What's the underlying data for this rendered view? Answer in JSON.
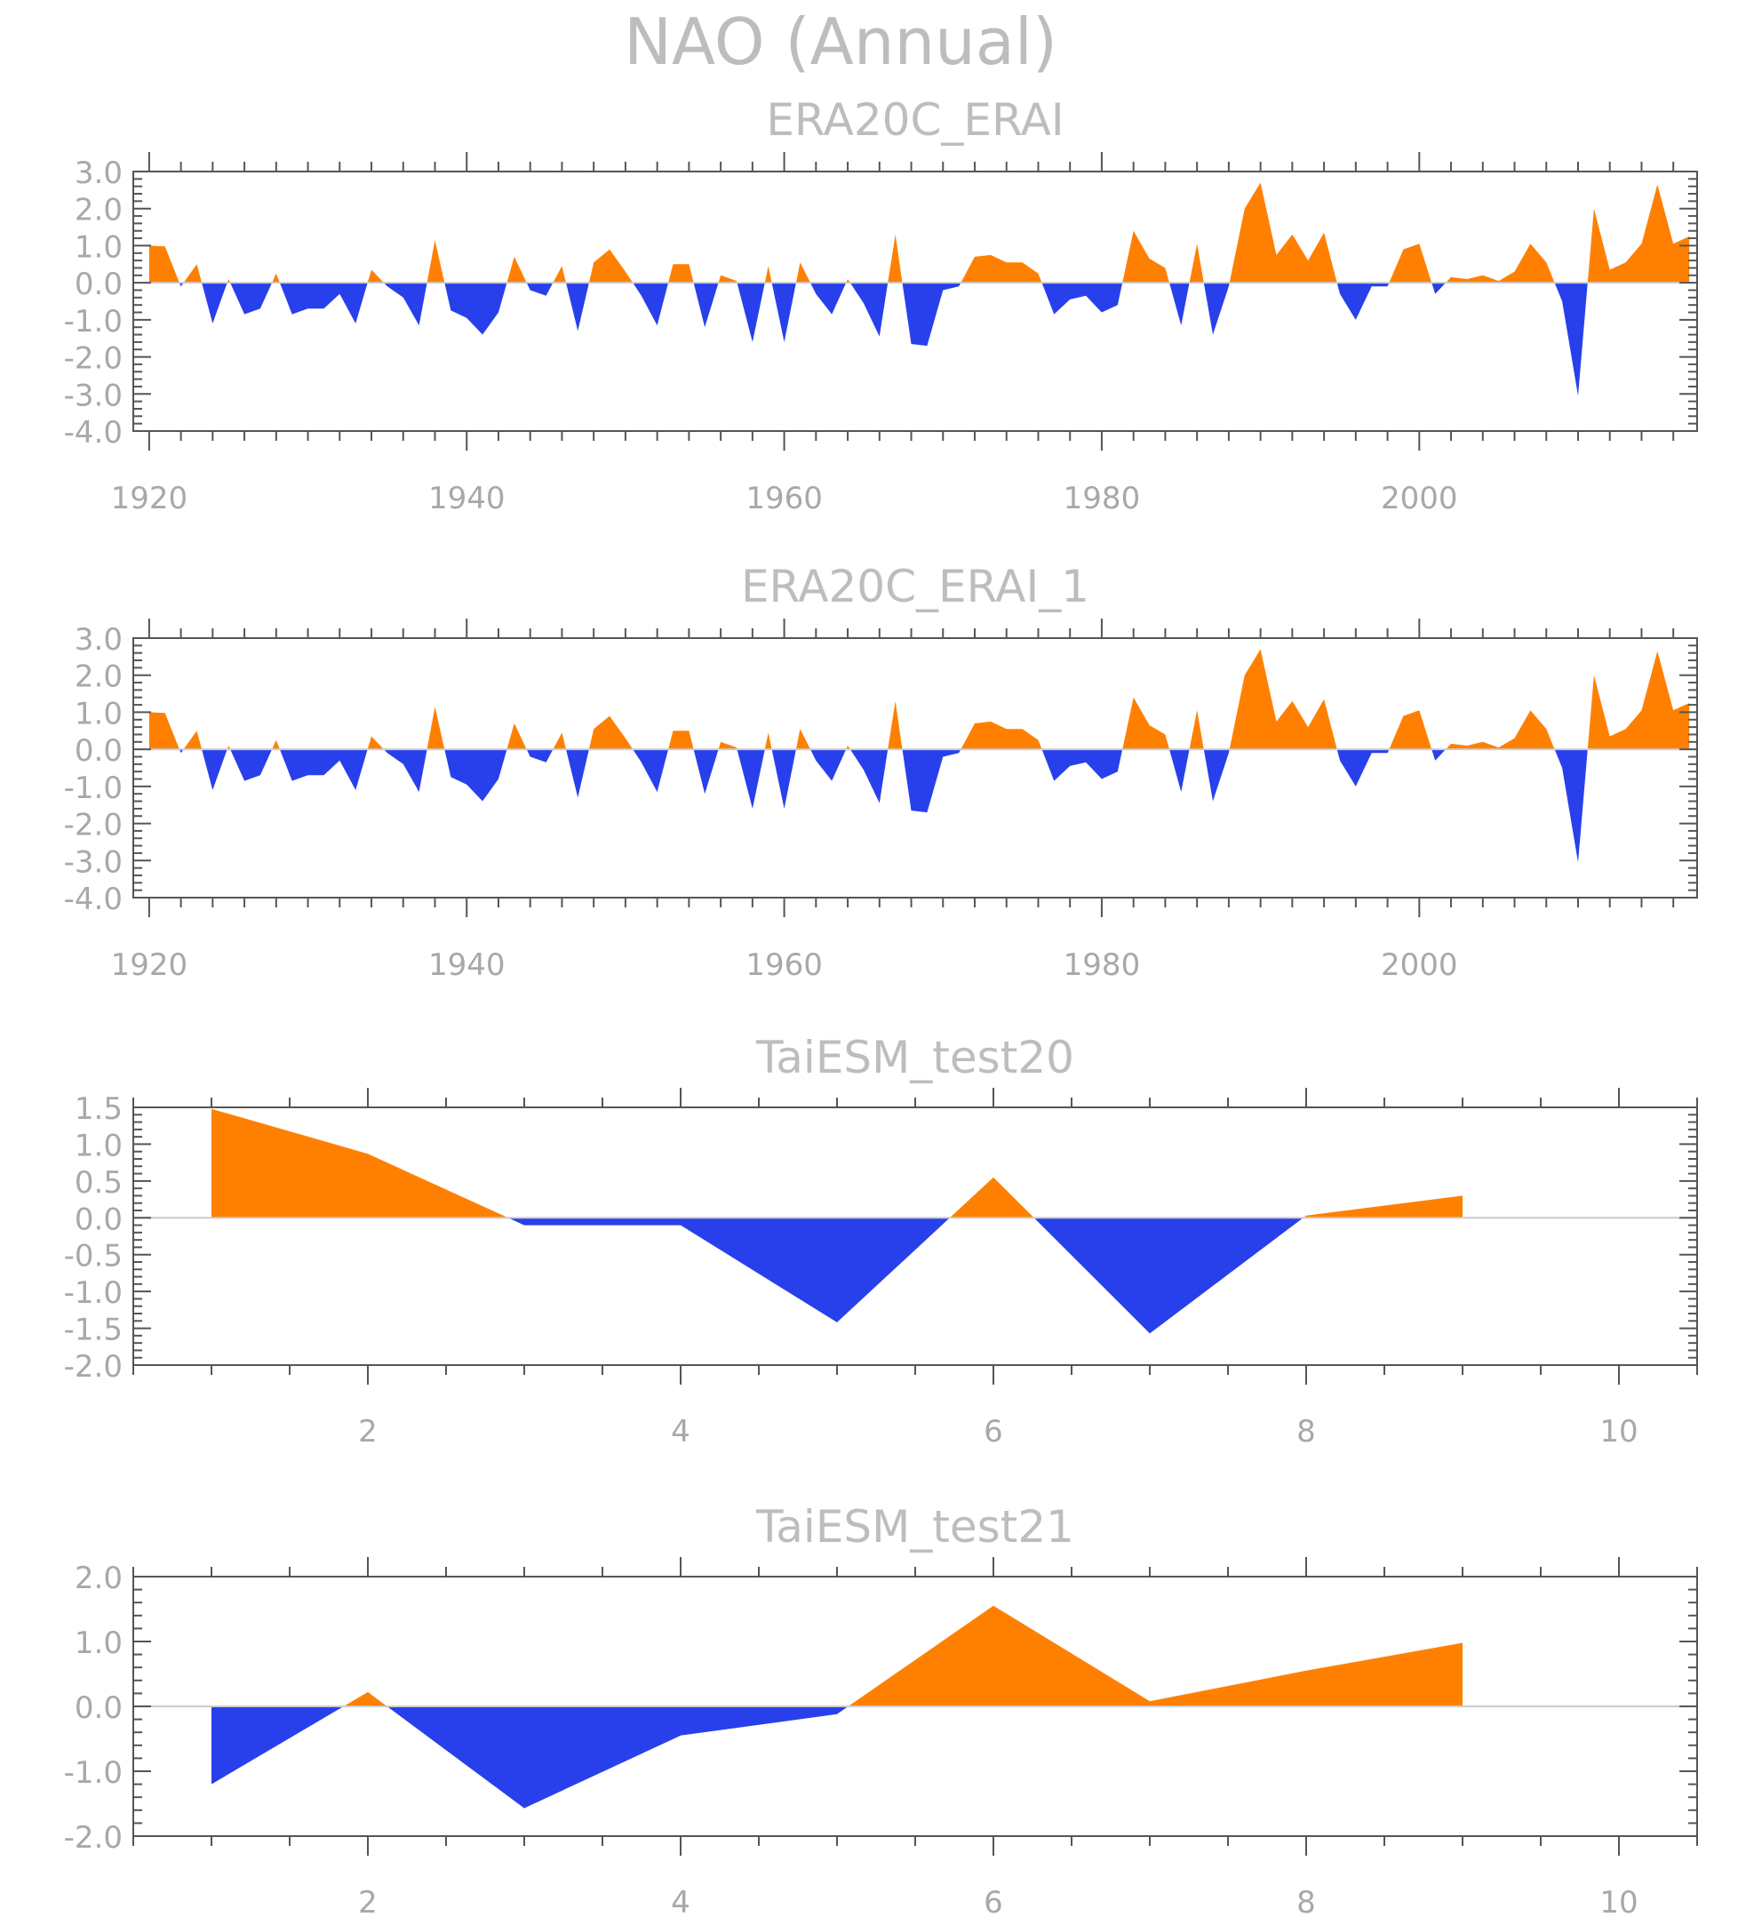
{
  "title": "NAO (Annual)",
  "colors": {
    "positive": "#ff8000",
    "negative": "#2840eb",
    "text": "#bdbdbd",
    "frame": "#555555"
  },
  "chart_data": [
    {
      "type": "area",
      "title": "ERA20C_ERAI",
      "xlim": [
        1919,
        2017.5
      ],
      "ylim": [
        -4.0,
        3.0
      ],
      "yticks": [
        "3.0",
        "2.0",
        "1.0",
        "0.0",
        "-1.0",
        "-2.0",
        "-3.0",
        "-4.0"
      ],
      "xticks": [
        "1920",
        "1940",
        "1960",
        "1980",
        "2000"
      ],
      "x": [
        1920,
        1921,
        1922,
        1923,
        1924,
        1925,
        1926,
        1927,
        1928,
        1929,
        1930,
        1931,
        1932,
        1933,
        1934,
        1935,
        1936,
        1937,
        1938,
        1939,
        1940,
        1941,
        1942,
        1943,
        1944,
        1945,
        1946,
        1947,
        1948,
        1949,
        1950,
        1951,
        1952,
        1953,
        1954,
        1955,
        1956,
        1957,
        1958,
        1959,
        1960,
        1961,
        1962,
        1963,
        1964,
        1965,
        1966,
        1967,
        1968,
        1969,
        1970,
        1971,
        1972,
        1973,
        1974,
        1975,
        1976,
        1977,
        1978,
        1979,
        1980,
        1981,
        1982,
        1983,
        1984,
        1985,
        1986,
        1987,
        1988,
        1989,
        1990,
        1991,
        1992,
        1993,
        1994,
        1995,
        1996,
        1997,
        1998,
        1999,
        2000,
        2001,
        2002,
        2003,
        2004,
        2005,
        2006,
        2007,
        2008,
        2009,
        2010,
        2011,
        2012,
        2013,
        2014,
        2015,
        2016,
        2017
      ],
      "values": [
        1.0,
        0.98,
        -0.1,
        0.5,
        -1.1,
        0.1,
        -0.85,
        -0.7,
        0.25,
        -0.85,
        -0.7,
        -0.7,
        -0.3,
        -1.1,
        0.35,
        -0.1,
        -0.4,
        -1.15,
        1.15,
        -0.75,
        -0.95,
        -1.4,
        -0.8,
        0.7,
        -0.2,
        -0.35,
        0.45,
        -1.3,
        0.55,
        0.9,
        0.3,
        -0.35,
        -1.15,
        0.5,
        0.5,
        -1.2,
        0.2,
        0.05,
        -1.6,
        0.45,
        -1.6,
        0.55,
        -0.3,
        -0.85,
        0.1,
        -0.55,
        -1.45,
        1.3,
        -1.65,
        -1.7,
        -0.2,
        -0.1,
        0.7,
        0.75,
        0.55,
        0.55,
        0.25,
        -0.85,
        -0.45,
        -0.35,
        -0.8,
        -0.6,
        1.4,
        0.65,
        0.4,
        -1.15,
        1.05,
        -1.4,
        -0.1,
        2.0,
        2.7,
        0.75,
        1.3,
        0.6,
        1.35,
        -0.3,
        -1.0,
        -0.1,
        -0.1,
        0.9,
        1.05,
        -0.3,
        0.15,
        0.1,
        0.2,
        0.05,
        0.3,
        1.05,
        0.55,
        -0.5,
        -3.05,
        2.0,
        0.35,
        0.55,
        1.05,
        2.65,
        1.05,
        1.25
      ]
    },
    {
      "type": "area",
      "title": "ERA20C_ERAI_1",
      "xlim": [
        1919,
        2017.5
      ],
      "ylim": [
        -4.0,
        3.0
      ],
      "yticks": [
        "3.0",
        "2.0",
        "1.0",
        "0.0",
        "-1.0",
        "-2.0",
        "-3.0",
        "-4.0"
      ],
      "xticks": [
        "1920",
        "1940",
        "1960",
        "1980",
        "2000"
      ],
      "x": [
        1920,
        1921,
        1922,
        1923,
        1924,
        1925,
        1926,
        1927,
        1928,
        1929,
        1930,
        1931,
        1932,
        1933,
        1934,
        1935,
        1936,
        1937,
        1938,
        1939,
        1940,
        1941,
        1942,
        1943,
        1944,
        1945,
        1946,
        1947,
        1948,
        1949,
        1950,
        1951,
        1952,
        1953,
        1954,
        1955,
        1956,
        1957,
        1958,
        1959,
        1960,
        1961,
        1962,
        1963,
        1964,
        1965,
        1966,
        1967,
        1968,
        1969,
        1970,
        1971,
        1972,
        1973,
        1974,
        1975,
        1976,
        1977,
        1978,
        1979,
        1980,
        1981,
        1982,
        1983,
        1984,
        1985,
        1986,
        1987,
        1988,
        1989,
        1990,
        1991,
        1992,
        1993,
        1994,
        1995,
        1996,
        1997,
        1998,
        1999,
        2000,
        2001,
        2002,
        2003,
        2004,
        2005,
        2006,
        2007,
        2008,
        2009,
        2010,
        2011,
        2012,
        2013,
        2014,
        2015,
        2016,
        2017
      ],
      "values": [
        1.0,
        0.98,
        -0.1,
        0.5,
        -1.1,
        0.1,
        -0.85,
        -0.7,
        0.25,
        -0.85,
        -0.7,
        -0.7,
        -0.3,
        -1.1,
        0.35,
        -0.1,
        -0.4,
        -1.15,
        1.15,
        -0.75,
        -0.95,
        -1.4,
        -0.8,
        0.7,
        -0.2,
        -0.35,
        0.45,
        -1.3,
        0.55,
        0.9,
        0.3,
        -0.35,
        -1.15,
        0.5,
        0.5,
        -1.2,
        0.2,
        0.05,
        -1.6,
        0.45,
        -1.6,
        0.55,
        -0.3,
        -0.85,
        0.1,
        -0.55,
        -1.45,
        1.3,
        -1.65,
        -1.7,
        -0.2,
        -0.1,
        0.7,
        0.75,
        0.55,
        0.55,
        0.25,
        -0.85,
        -0.45,
        -0.35,
        -0.8,
        -0.6,
        1.4,
        0.65,
        0.4,
        -1.15,
        1.05,
        -1.4,
        -0.1,
        2.0,
        2.7,
        0.75,
        1.3,
        0.6,
        1.35,
        -0.3,
        -1.0,
        -0.1,
        -0.1,
        0.9,
        1.05,
        -0.3,
        0.15,
        0.1,
        0.2,
        0.05,
        0.3,
        1.05,
        0.55,
        -0.5,
        -3.05,
        2.0,
        0.35,
        0.55,
        1.05,
        2.65,
        1.05,
        1.25
      ]
    },
    {
      "type": "area",
      "title": "TaiESM_test20",
      "xlim": [
        0.5,
        10.5
      ],
      "ylim": [
        -2.0,
        1.5
      ],
      "yticks": [
        "1.5",
        "1.0",
        "0.5",
        "0.0",
        "-0.5",
        "-1.0",
        "-1.5",
        "-2.0"
      ],
      "xticks": [
        "2",
        "4",
        "6",
        "8",
        "10"
      ],
      "x": [
        1,
        2,
        3,
        4,
        5,
        6,
        7,
        8,
        9
      ],
      "values": [
        1.48,
        0.87,
        -0.1,
        -0.1,
        -1.42,
        0.55,
        -1.57,
        0.03,
        0.3
      ]
    },
    {
      "type": "area",
      "title": "TaiESM_test21",
      "xlim": [
        0.5,
        10.5
      ],
      "ylim": [
        -2.0,
        2.0
      ],
      "yticks": [
        "2.0",
        "1.0",
        "0.0",
        "-1.0",
        "-2.0"
      ],
      "xticks": [
        "2",
        "4",
        "6",
        "8",
        "10"
      ],
      "x": [
        1,
        2,
        3,
        4,
        5,
        6,
        7,
        8,
        9
      ],
      "values": [
        -1.2,
        0.22,
        -1.57,
        -0.45,
        -0.12,
        1.55,
        0.08,
        0.55,
        0.98
      ]
    }
  ]
}
